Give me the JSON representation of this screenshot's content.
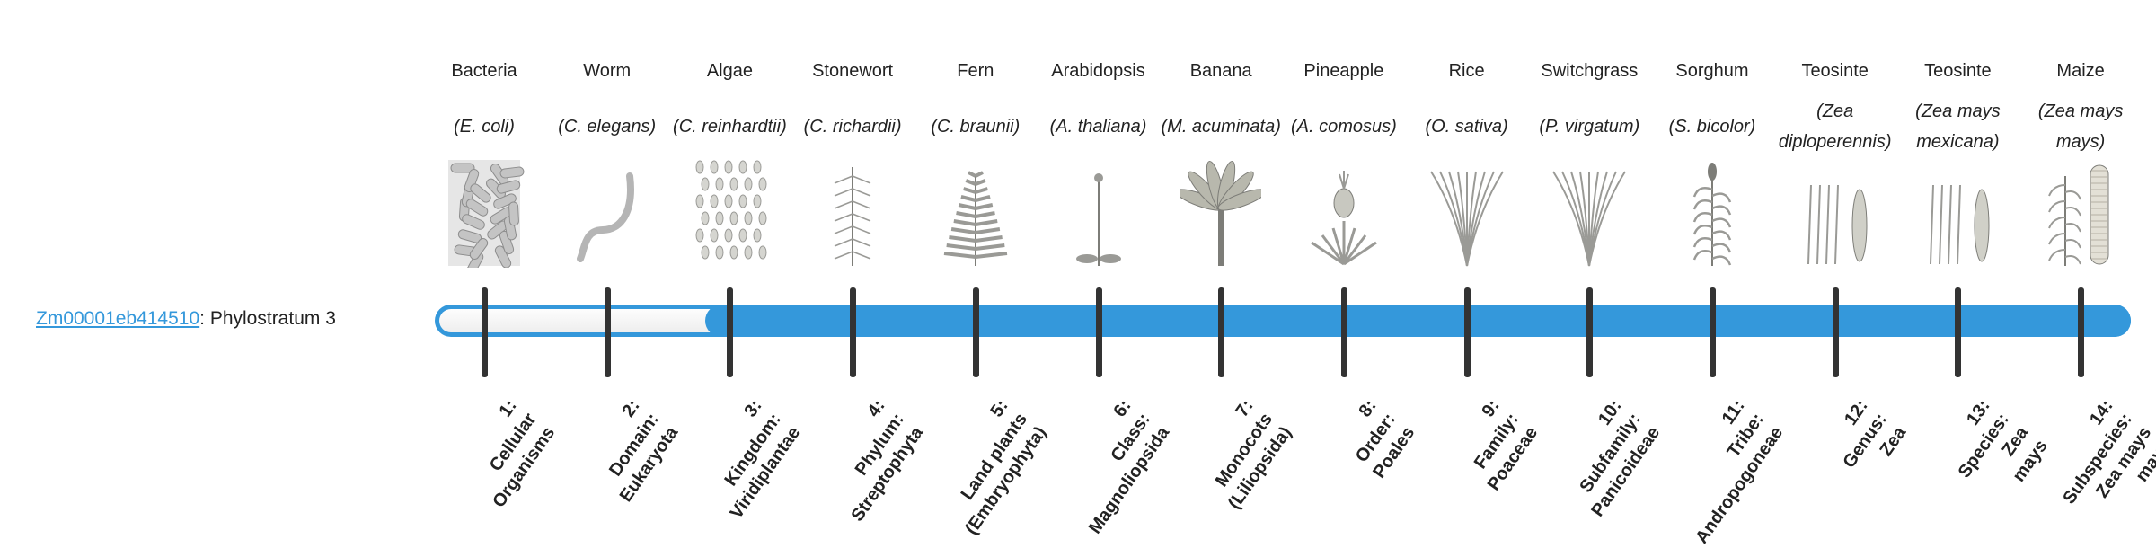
{
  "gene": {
    "id": "Zm00001eb414510",
    "suffix": ": Phylostratum 3",
    "phylostratum": 3
  },
  "colors": {
    "accent": "#3498db",
    "tick": "#333333",
    "track": "#f2f2f2"
  },
  "strata": [
    {
      "common": "Bacteria",
      "scientific": "(E. coli)",
      "icon": "bacteria",
      "label": [
        "1:",
        "Cellular",
        "Organisms"
      ]
    },
    {
      "common": "Worm",
      "scientific": "(C. elegans)",
      "icon": "worm",
      "label": [
        "2:",
        "Domain:",
        "Eukaryota"
      ]
    },
    {
      "common": "Algae",
      "scientific": "(C. reinhardtii)",
      "icon": "algae",
      "label": [
        "3:",
        "Kingdom:",
        "Viridiplantae"
      ]
    },
    {
      "common": "Stonewort",
      "scientific": "(C. richardii)",
      "icon": "stonewort",
      "label": [
        "4:",
        "Phylum:",
        "Streptophyta"
      ]
    },
    {
      "common": "Fern",
      "scientific": "(C. braunii)",
      "icon": "fern",
      "label": [
        "5:",
        "Land plants",
        "(Embryophyta)"
      ]
    },
    {
      "common": "Arabidopsis",
      "scientific": "(A. thaliana)",
      "icon": "arabidopsis",
      "label": [
        "6:",
        "Class:",
        "Magnoliopsida"
      ]
    },
    {
      "common": "Banana",
      "scientific": "(M. acuminata)",
      "icon": "banana",
      "label": [
        "7:",
        "Monocots",
        "(Liliopsida)"
      ]
    },
    {
      "common": "Pineapple",
      "scientific": "(A. comosus)",
      "icon": "pineapple",
      "label": [
        "8:",
        "Order:",
        "Poales"
      ]
    },
    {
      "common": "Rice",
      "scientific": "(O. sativa)",
      "icon": "grass",
      "label": [
        "9:",
        "Family:",
        "Poaceae"
      ]
    },
    {
      "common": "Switchgrass",
      "scientific": "(P. virgatum)",
      "icon": "grass",
      "label": [
        "10:",
        "Subfamily:",
        "Panicoideae"
      ]
    },
    {
      "common": "Sorghum",
      "scientific": "(S. bicolor)",
      "icon": "sorghum",
      "label": [
        "11:",
        "Tribe:",
        "Andropogoneae"
      ]
    },
    {
      "common": "Teosinte",
      "scientific": "(Zea diploperennis)",
      "icon": "teosinte",
      "label": [
        "12:",
        "Genus:",
        "Zea"
      ]
    },
    {
      "common": "Teosinte",
      "scientific": "(Zea mays mexicana)",
      "icon": "teosinte",
      "label": [
        "13:",
        "Species:",
        "Zea",
        "mays"
      ]
    },
    {
      "common": "Maize",
      "scientific": "(Zea mays mays)",
      "icon": "maize",
      "label": [
        "14:",
        "Subspecies:",
        "Zea mays",
        "mays"
      ]
    }
  ]
}
